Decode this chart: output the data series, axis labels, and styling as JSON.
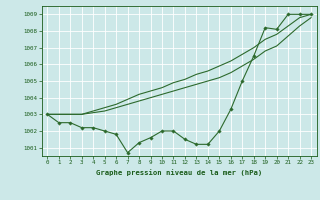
{
  "x": [
    0,
    1,
    2,
    3,
    4,
    5,
    6,
    7,
    8,
    9,
    10,
    11,
    12,
    13,
    14,
    15,
    16,
    17,
    18,
    19,
    20,
    21,
    22,
    23
  ],
  "y_main": [
    1003.0,
    1002.5,
    1002.5,
    1002.2,
    1002.2,
    1002.0,
    1001.8,
    1000.7,
    1001.3,
    1001.6,
    1002.0,
    1002.0,
    1001.5,
    1001.2,
    1001.2,
    1002.0,
    1003.3,
    1005.0,
    1006.5,
    1008.2,
    1008.1,
    1009.0,
    1009.0,
    1009.0
  ],
  "y_upper": [
    1003.0,
    1003.0,
    1003.0,
    1003.0,
    1003.2,
    1003.4,
    1003.6,
    1003.9,
    1004.2,
    1004.4,
    1004.6,
    1004.9,
    1005.1,
    1005.4,
    1005.6,
    1005.9,
    1006.2,
    1006.6,
    1007.0,
    1007.5,
    1007.8,
    1008.3,
    1008.8,
    1009.0
  ],
  "y_lower": [
    1003.0,
    1003.0,
    1003.0,
    1003.0,
    1003.1,
    1003.2,
    1003.4,
    1003.6,
    1003.8,
    1004.0,
    1004.2,
    1004.4,
    1004.6,
    1004.8,
    1005.0,
    1005.2,
    1005.5,
    1005.9,
    1006.3,
    1006.8,
    1007.1,
    1007.7,
    1008.3,
    1008.8
  ],
  "xlim": [
    -0.5,
    23.5
  ],
  "ylim": [
    1000.5,
    1009.5
  ],
  "yticks": [
    1001,
    1002,
    1003,
    1004,
    1005,
    1006,
    1007,
    1008,
    1009
  ],
  "xticks": [
    0,
    1,
    2,
    3,
    4,
    5,
    6,
    7,
    8,
    9,
    10,
    11,
    12,
    13,
    14,
    15,
    16,
    17,
    18,
    19,
    20,
    21,
    22,
    23
  ],
  "line_color": "#2d6a2d",
  "bg_color": "#cce8e8",
  "grid_color": "#ffffff",
  "xlabel": "Graphe pression niveau de la mer (hPa)",
  "xlabel_color": "#1a5c1a",
  "tick_color": "#1a5c1a",
  "marker": "D",
  "marker_size": 1.8,
  "linewidth": 0.8
}
